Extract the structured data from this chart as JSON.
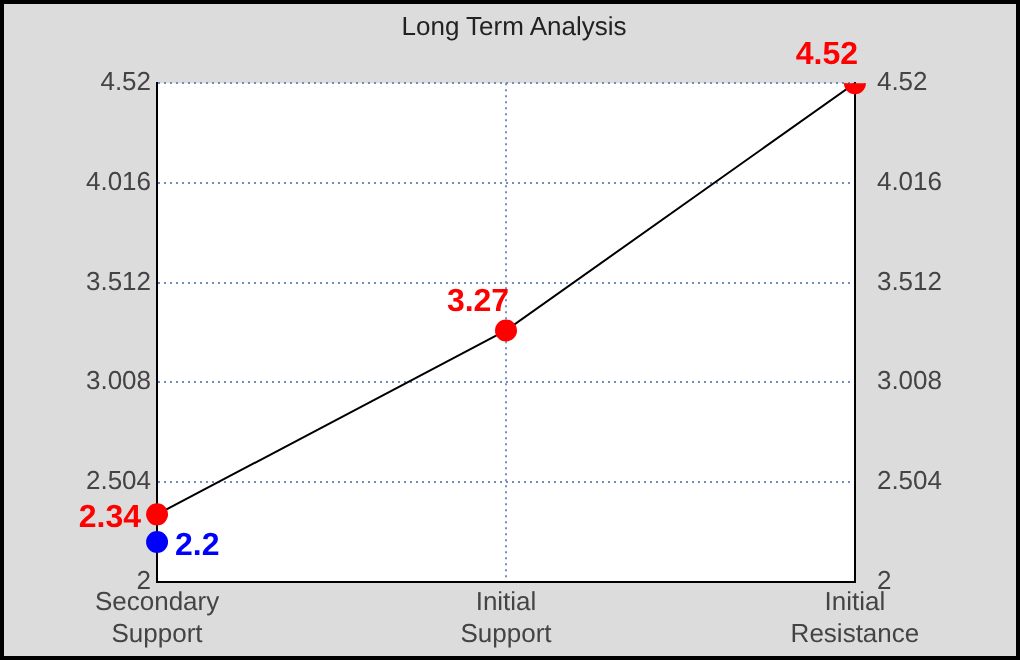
{
  "chart_data": {
    "type": "line",
    "title": "Long Term Analysis",
    "categories": [
      "Secondary\nSupport",
      "Initial\nSupport",
      "Initial\nResistance"
    ],
    "series": [
      {
        "type": "line",
        "color": "#000000",
        "values": [
          2.34,
          3.27,
          4.52
        ],
        "marker": "none"
      },
      {
        "type": "scatter",
        "color": "#ff0000",
        "values": [
          2.34,
          3.27,
          4.52
        ],
        "marker": "circle",
        "value_labels": [
          "2.34",
          "3.27",
          "4.52"
        ]
      },
      {
        "type": "scatter",
        "color": "#0000ff",
        "values": [
          2.2,
          null,
          null
        ],
        "marker": "circle",
        "value_labels": [
          "2.2",
          null,
          null
        ]
      }
    ],
    "ylim": [
      2,
      4.52
    ],
    "yticks": [
      2,
      2.504,
      3.008,
      3.512,
      4.016,
      4.52
    ],
    "y2lim": [
      2,
      4.52
    ],
    "y2ticks": [
      2,
      2.504,
      3.008,
      3.512,
      4.016,
      4.52
    ],
    "grid": true,
    "legend": false
  }
}
